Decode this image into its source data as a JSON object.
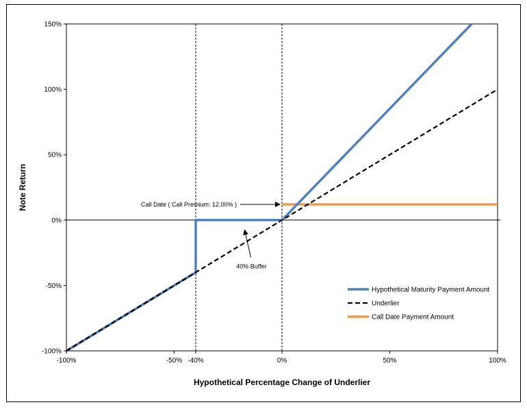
{
  "chart_data": {
    "type": "line",
    "xlabel": "Hypothetical Percentage Change of Underlier",
    "ylabel": "Note Return",
    "xlim": [
      -100,
      100
    ],
    "ylim": [
      -100,
      150
    ],
    "x_ticks": [
      -100,
      -50,
      -40,
      0,
      50,
      100
    ],
    "x_tick_labels": [
      "-100%",
      "-50%",
      "-40%",
      "0%",
      "50%",
      "100%"
    ],
    "y_ticks": [
      -100,
      -50,
      0,
      50,
      100,
      150
    ],
    "y_tick_labels": [
      "-100%",
      "-50%",
      "0%",
      "50%",
      "100%",
      "150%"
    ],
    "series": [
      {
        "name": "Hypothetical Maturity Payment Amount",
        "color": "#4f81bd",
        "style": "solid",
        "x": [
          -100,
          -40,
          -40,
          0,
          88
        ],
        "y": [
          -100,
          -40,
          0,
          0,
          150
        ]
      },
      {
        "name": "Underlier",
        "color": "#000000",
        "style": "dashed",
        "x": [
          -100,
          100
        ],
        "y": [
          -100,
          100
        ]
      },
      {
        "name": "Call Date Payment Amount",
        "color": "#f79646",
        "style": "solid",
        "x": [
          0,
          100
        ],
        "y": [
          12,
          12
        ]
      }
    ],
    "reference_lines": {
      "vertical_dashed_at": [
        -40,
        0
      ],
      "horizontal_at": [
        0
      ]
    },
    "annotations": [
      {
        "text": "Call Date ( Call Premium: 12.00% )",
        "target_x": 0,
        "target_y": 12
      },
      {
        "text": "40% Buffer",
        "target_x": -17,
        "target_y": -6
      }
    ],
    "legend_position": "lower-right",
    "grid": false
  }
}
